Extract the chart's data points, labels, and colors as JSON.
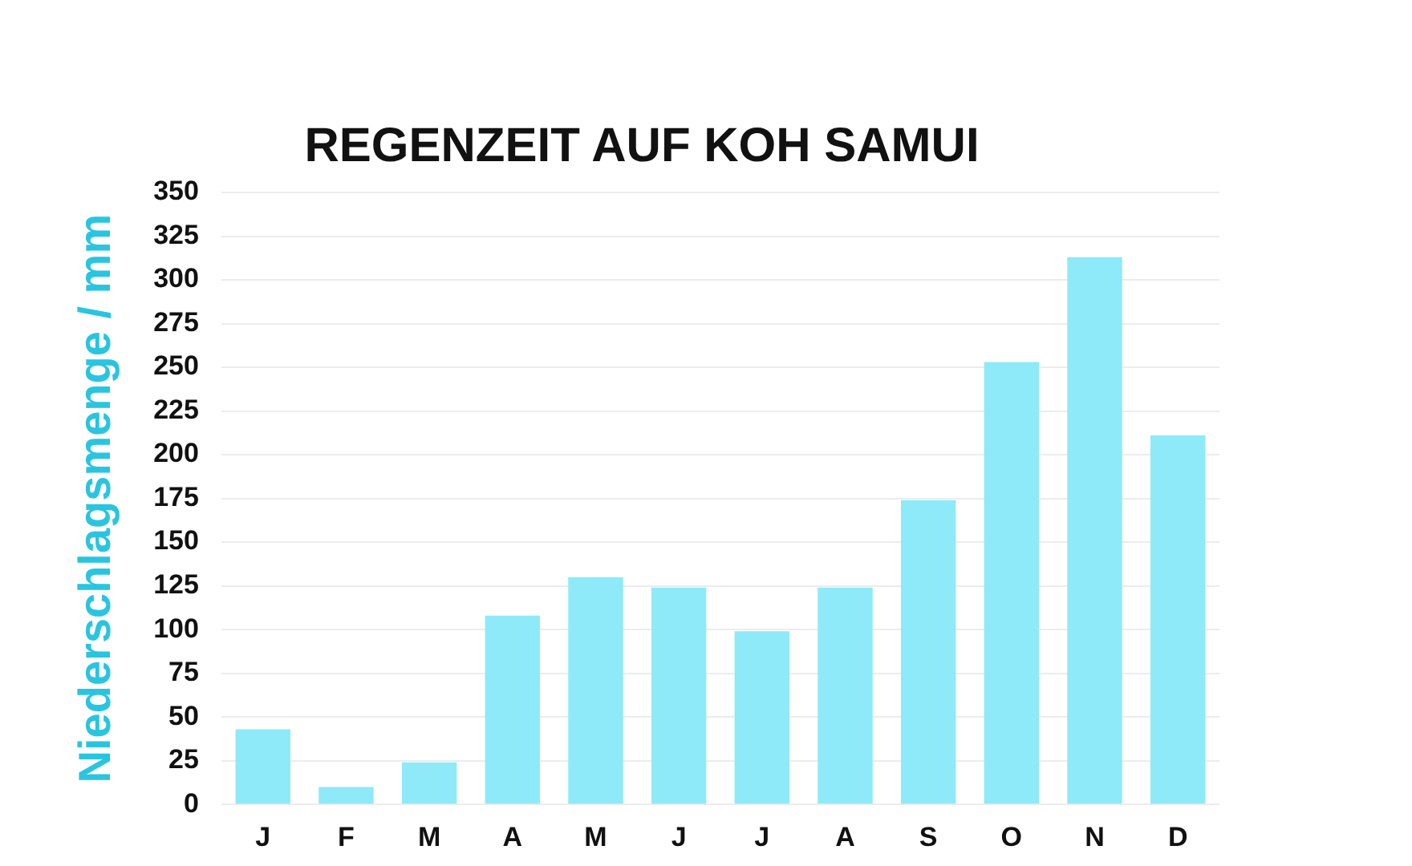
{
  "chart_data": {
    "type": "bar",
    "title": "REGENZEIT AUF KOH SAMUI",
    "ylabel": "Niederschlagsmenge / mm",
    "categories": [
      "J",
      "F",
      "M",
      "A",
      "M",
      "J",
      "J",
      "A",
      "S",
      "O",
      "N",
      "D"
    ],
    "values": [
      43,
      10,
      24,
      108,
      130,
      124,
      99,
      124,
      174,
      253,
      313,
      211
    ],
    "color": "#8eeaf8",
    "ylim": [
      0,
      350
    ],
    "yticks": [
      0,
      25,
      50,
      75,
      100,
      125,
      150,
      175,
      200,
      225,
      250,
      275,
      300,
      325,
      350
    ],
    "grid": "y",
    "legend": false
  }
}
